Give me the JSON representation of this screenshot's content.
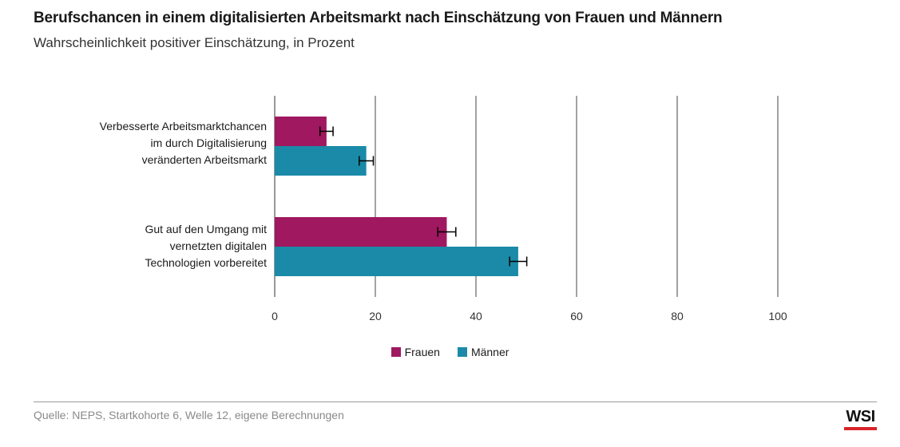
{
  "chart_data": {
    "type": "bar",
    "orientation": "horizontal",
    "title": "Berufschancen in einem digitalisierten Arbeitsmarkt nach Einschätzung von Frauen und Männern",
    "subtitle": "Wahrscheinlichkeit positiver Einschätzung, in Prozent",
    "categories": [
      [
        "Verbesserte Arbeitsmarktchancen",
        "im durch Digitalisierung",
        "veränderten Arbeitsmarkt"
      ],
      [
        "Gut auf den Umgang mit",
        "vernetzten digitalen",
        "Technologien vorbereitet"
      ]
    ],
    "series": [
      {
        "name": "Frauen",
        "color": "#a0185f",
        "values": [
          10.3,
          34.2
        ],
        "error": [
          1.3,
          1.8
        ]
      },
      {
        "name": "Männer",
        "color": "#1a8aa8",
        "values": [
          18.2,
          48.4
        ],
        "error": [
          1.4,
          1.7
        ]
      }
    ],
    "xlim": [
      0,
      100
    ],
    "xticks": [
      "0",
      "20",
      "40",
      "60",
      "80",
      "100"
    ],
    "xtick_values": [
      0,
      20,
      40,
      60,
      80,
      100
    ],
    "grid": true,
    "legend": "bottom-center"
  },
  "source": "Quelle: NEPS, Startkohorte 6, Welle 12, eigene Berechnungen",
  "logo": "WSI"
}
